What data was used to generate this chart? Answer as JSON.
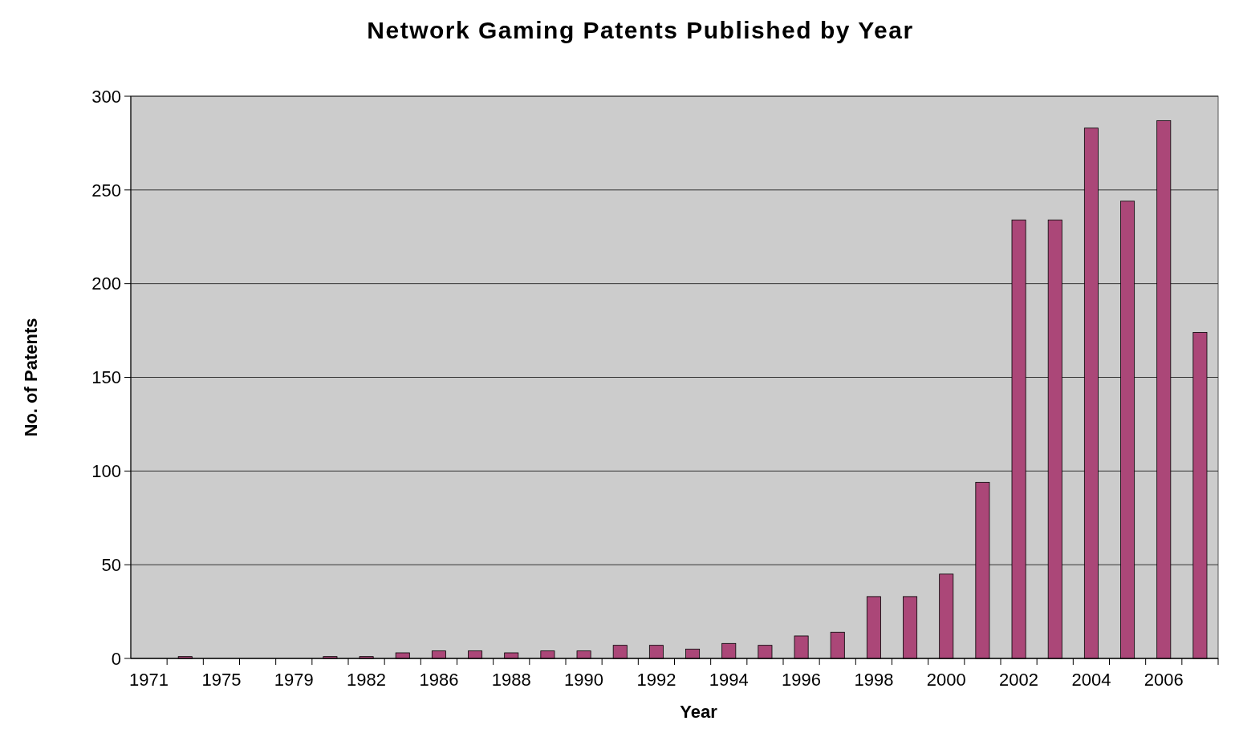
{
  "chart_data": {
    "type": "bar",
    "title": "Network Gaming Patents Published by Year",
    "xlabel": "Year",
    "ylabel": "No. of Patents",
    "categories": [
      "1971",
      null,
      "1975",
      null,
      "1979",
      null,
      "1982",
      null,
      "1986",
      null,
      "1988",
      null,
      "1990",
      null,
      "1992",
      null,
      "1994",
      null,
      "1996",
      null,
      "1998",
      null,
      "2000",
      null,
      "2002",
      null,
      "2004",
      null,
      "2006",
      null
    ],
    "values": [
      0,
      1,
      0,
      0,
      0,
      1,
      1,
      3,
      4,
      4,
      3,
      4,
      4,
      7,
      7,
      5,
      8,
      7,
      12,
      14,
      33,
      33,
      45,
      94,
      234,
      234,
      283,
      244,
      287,
      174
    ],
    "color": "#ab4778",
    "ylim": [
      0,
      300
    ],
    "yticks": [
      0,
      50,
      100,
      150,
      200,
      250,
      300
    ],
    "grid": "y"
  }
}
